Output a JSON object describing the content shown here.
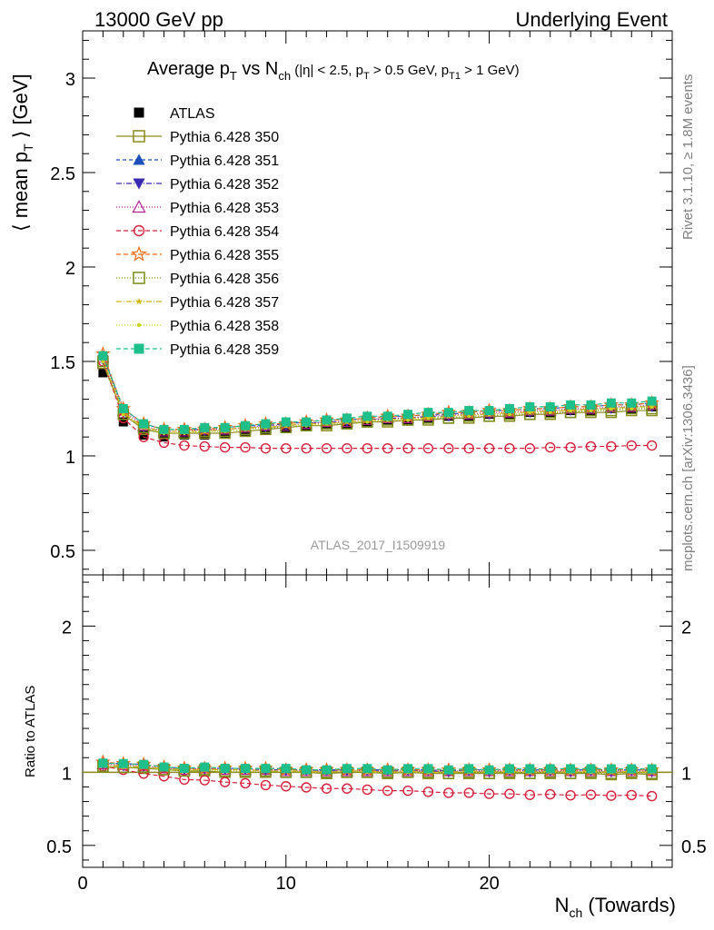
{
  "header": {
    "left": "13000 GeV pp",
    "right": "Underlying Event"
  },
  "side_labels": {
    "rivet": "Rivet 3.1.10, ≥ 1.8M events",
    "mcplots": "mcplots.cern.ch [arXiv:1306.3436]"
  },
  "watermark": "ATLAS_2017_I1509919",
  "chart_data": [
    {
      "type": "line",
      "panel": "main",
      "title_parts": {
        "a": "Average p",
        "a_sub": "T",
        "b": " vs N",
        "b_sub": "ch",
        "c": " (|η| < 2.5, p",
        "c_sub": "T",
        "d": " > 0.5 GeV, p",
        "d_sub": "T1",
        "e": " > 1 GeV)"
      },
      "ylabel_parts": {
        "a": "⟨ mean p",
        "sub": "T",
        "b": " ⟩ [GeV]"
      },
      "xlim": [
        0,
        29
      ],
      "ylim": [
        0.37,
        3.25
      ],
      "yticks": [
        0.5,
        1,
        1.5,
        2,
        2.5,
        3
      ],
      "ytick_labels": [
        "0.5",
        "1",
        "1.5",
        "2",
        "2.5",
        "3"
      ],
      "legend_position": "top-left",
      "x": [
        1,
        2,
        3,
        4,
        5,
        6,
        7,
        8,
        9,
        10,
        11,
        12,
        13,
        14,
        15,
        16,
        17,
        18,
        19,
        20,
        21,
        22,
        23,
        24,
        25,
        26,
        27,
        28
      ],
      "series": [
        {
          "name": "ATLAS",
          "color": "#000000",
          "marker": "square-filled",
          "dash": "none",
          "values": [
            1.44,
            1.18,
            1.11,
            1.1,
            1.11,
            1.11,
            1.12,
            1.13,
            1.14,
            1.15,
            1.16,
            1.17,
            1.17,
            1.18,
            1.19,
            1.19,
            1.2,
            1.21,
            1.21,
            1.22,
            1.22,
            1.23,
            1.23,
            1.24,
            1.24,
            1.25,
            1.25,
            1.26
          ]
        },
        {
          "name": "Pythia 6.428 350",
          "color": "#8c8c1e",
          "marker": "square-open",
          "dash": "solid",
          "values": [
            1.49,
            1.22,
            1.14,
            1.12,
            1.12,
            1.12,
            1.12,
            1.13,
            1.14,
            1.15,
            1.16,
            1.16,
            1.17,
            1.18,
            1.18,
            1.19,
            1.19,
            1.2,
            1.2,
            1.21,
            1.21,
            1.22,
            1.22,
            1.23,
            1.23,
            1.23,
            1.24,
            1.24
          ]
        },
        {
          "name": "Pythia 6.428 351",
          "color": "#1f4fbf",
          "marker": "triangle-up-filled",
          "dash": "4,3",
          "values": [
            1.53,
            1.25,
            1.17,
            1.14,
            1.14,
            1.14,
            1.15,
            1.16,
            1.16,
            1.17,
            1.18,
            1.19,
            1.19,
            1.2,
            1.21,
            1.21,
            1.22,
            1.22,
            1.23,
            1.24,
            1.24,
            1.25,
            1.25,
            1.26,
            1.26,
            1.27,
            1.27,
            1.28
          ]
        },
        {
          "name": "Pythia 6.428 352",
          "color": "#3b2bb0",
          "marker": "triangle-down-filled",
          "dash": "6,2,1,2",
          "values": [
            1.51,
            1.23,
            1.15,
            1.13,
            1.13,
            1.13,
            1.14,
            1.15,
            1.15,
            1.16,
            1.17,
            1.18,
            1.18,
            1.19,
            1.2,
            1.2,
            1.21,
            1.21,
            1.22,
            1.22,
            1.23,
            1.23,
            1.24,
            1.24,
            1.25,
            1.25,
            1.26,
            1.26
          ]
        },
        {
          "name": "Pythia 6.428 353",
          "color": "#b0208a",
          "marker": "triangle-up-open",
          "dash": "1,2",
          "values": [
            1.52,
            1.24,
            1.16,
            1.13,
            1.13,
            1.14,
            1.14,
            1.15,
            1.16,
            1.16,
            1.17,
            1.18,
            1.18,
            1.19,
            1.2,
            1.2,
            1.21,
            1.22,
            1.22,
            1.23,
            1.23,
            1.24,
            1.24,
            1.25,
            1.25,
            1.26,
            1.26,
            1.27
          ]
        },
        {
          "name": "Pythia 6.428 354",
          "color": "#d6203a",
          "marker": "circle-open",
          "dash": "5,3",
          "values": [
            1.5,
            1.2,
            1.1,
            1.07,
            1.055,
            1.05,
            1.045,
            1.045,
            1.04,
            1.04,
            1.04,
            1.04,
            1.04,
            1.04,
            1.04,
            1.04,
            1.04,
            1.04,
            1.04,
            1.04,
            1.04,
            1.04,
            1.045,
            1.045,
            1.05,
            1.05,
            1.055,
            1.055
          ]
        },
        {
          "name": "Pythia 6.428 355",
          "color": "#ef6a1a",
          "marker": "star-open",
          "dash": "5,3",
          "values": [
            1.54,
            1.25,
            1.17,
            1.14,
            1.14,
            1.14,
            1.15,
            1.16,
            1.17,
            1.17,
            1.18,
            1.19,
            1.19,
            1.2,
            1.21,
            1.21,
            1.22,
            1.23,
            1.23,
            1.24,
            1.24,
            1.25,
            1.25,
            1.26,
            1.26,
            1.27,
            1.27,
            1.28
          ]
        },
        {
          "name": "Pythia 6.428 356",
          "color": "#7a8c1c",
          "marker": "square-open",
          "dash": "1,2",
          "values": [
            1.5,
            1.22,
            1.15,
            1.12,
            1.12,
            1.13,
            1.13,
            1.14,
            1.15,
            1.15,
            1.16,
            1.17,
            1.17,
            1.18,
            1.19,
            1.19,
            1.2,
            1.2,
            1.21,
            1.21,
            1.22,
            1.22,
            1.23,
            1.23,
            1.24,
            1.24,
            1.25,
            1.25
          ]
        },
        {
          "name": "Pythia 6.428 357",
          "color": "#d4b61a",
          "marker": "star-small",
          "dash": "6,2,1,2",
          "values": [
            1.51,
            1.23,
            1.15,
            1.13,
            1.13,
            1.13,
            1.14,
            1.15,
            1.15,
            1.16,
            1.17,
            1.17,
            1.18,
            1.19,
            1.19,
            1.2,
            1.2,
            1.21,
            1.22,
            1.22,
            1.23,
            1.23,
            1.24,
            1.24,
            1.25,
            1.25,
            1.26,
            1.26
          ]
        },
        {
          "name": "Pythia 6.428 358",
          "color": "#c8d41a",
          "marker": "dot",
          "dash": "1,2",
          "values": [
            1.5,
            1.22,
            1.15,
            1.12,
            1.12,
            1.13,
            1.13,
            1.14,
            1.15,
            1.16,
            1.16,
            1.17,
            1.18,
            1.18,
            1.19,
            1.19,
            1.2,
            1.21,
            1.21,
            1.22,
            1.22,
            1.23,
            1.23,
            1.24,
            1.24,
            1.25,
            1.25,
            1.26
          ]
        },
        {
          "name": "Pythia 6.428 359",
          "color": "#1fbf8c",
          "marker": "square-filled",
          "dash": "5,3",
          "values": [
            1.53,
            1.25,
            1.17,
            1.14,
            1.14,
            1.15,
            1.15,
            1.16,
            1.17,
            1.18,
            1.18,
            1.19,
            1.2,
            1.21,
            1.21,
            1.22,
            1.23,
            1.23,
            1.24,
            1.24,
            1.25,
            1.26,
            1.26,
            1.27,
            1.27,
            1.28,
            1.28,
            1.29
          ]
        }
      ]
    },
    {
      "type": "line",
      "panel": "ratio",
      "ylabel": "Ratio to ATLAS",
      "xlabel_parts": {
        "a": "N",
        "sub": "ch",
        "b": " (Towards)"
      },
      "xlim": [
        0,
        29
      ],
      "ylim": [
        0.35,
        2.35
      ],
      "xticks": [
        0,
        10,
        20
      ],
      "xtick_labels": [
        "0",
        "10",
        "20"
      ],
      "yticks": [
        0.5,
        1,
        2
      ],
      "ytick_labels": [
        "0.5",
        "1",
        "2"
      ],
      "reference_line": 1,
      "reference_color": "#8c8c1e",
      "note": "ratio = series / ATLAS, computed from main panel values"
    }
  ]
}
